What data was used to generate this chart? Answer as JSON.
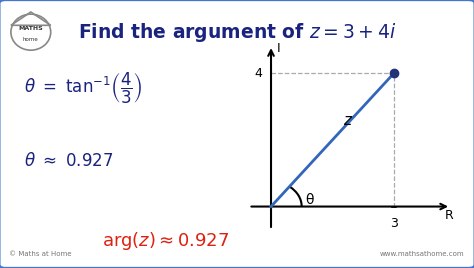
{
  "title": "Find the argument of $z = 3 + 4i$",
  "title_fontsize": 13.5,
  "bg_color": "#ffffff",
  "border_color": "#4477cc",
  "text_color": "#1a237e",
  "red_color": "#dd2211",
  "line_color": "#3366bb",
  "eq1_text": "$\\theta \\ = \\ \\tan^{-1}\\!\\left(\\dfrac{4}{3}\\right)$",
  "eq1_fontsize": 12,
  "eq2_text": "$\\theta \\ \\approx \\ 0.927$",
  "eq2_fontsize": 12,
  "eq3_text": "$\\mathrm{arg}(z) \\approx 0.927$",
  "eq3_fontsize": 13,
  "watermark": "www.mathsathome.com",
  "copyright": "© Maths at Home",
  "axis_label_R": "R",
  "axis_label_I": "I",
  "theta_label": "θ",
  "z_label": "z",
  "tick_3": "3",
  "tick_4": "4",
  "point_x": 3,
  "point_y": 4,
  "xlim": [
    -0.6,
    4.5
  ],
  "ylim": [
    -0.8,
    5.0
  ]
}
